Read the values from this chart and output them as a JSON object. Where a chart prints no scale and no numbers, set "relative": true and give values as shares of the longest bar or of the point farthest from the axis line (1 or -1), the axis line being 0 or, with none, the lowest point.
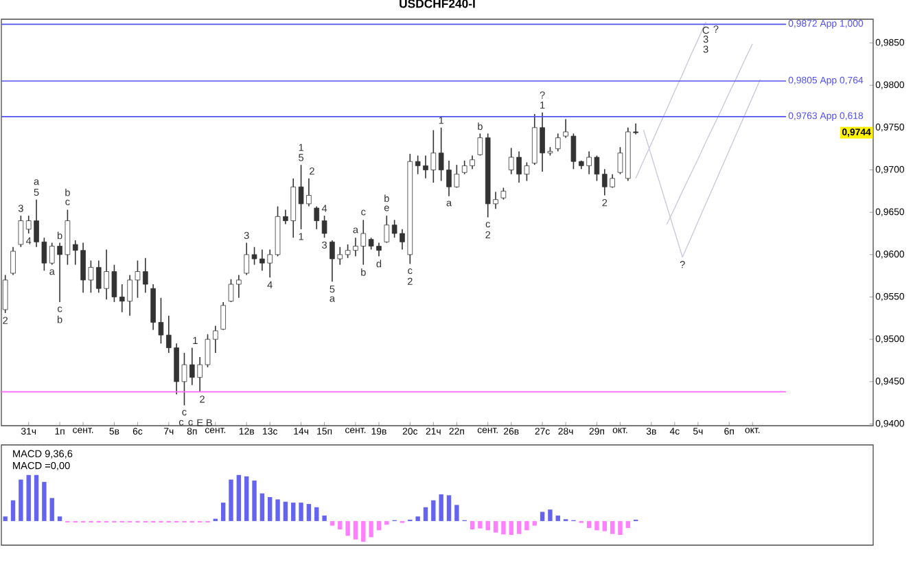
{
  "chart_data": [
    {
      "type": "candlestick",
      "title": "USDCHF240-I",
      "color": "#333333",
      "categories": [
        null,
        null,
        null,
        "31ч",
        null,
        null,
        null,
        "1п",
        null,
        null,
        "сент.",
        null,
        null,
        null,
        "5в",
        null,
        null,
        "6с",
        null,
        null,
        null,
        "7ч",
        null,
        null,
        "8п",
        null,
        null,
        "сент.",
        null,
        null,
        null,
        "12в",
        null,
        null,
        "13с",
        null,
        null,
        null,
        "14ч",
        null,
        null,
        "15п",
        null,
        null,
        null,
        "сент.",
        null,
        null,
        "19в",
        null,
        null,
        null,
        "20с",
        null,
        null,
        "21ч",
        null,
        null,
        "22п",
        null,
        null,
        null,
        "сент.",
        null,
        null,
        "26в",
        null,
        null,
        null,
        "27с",
        null,
        null,
        "28ч",
        null,
        null,
        null,
        "29п",
        null,
        null,
        "окт.",
        null,
        null,
        null,
        "3в",
        null,
        null,
        "4с",
        null,
        null,
        "5ч",
        null,
        null,
        null,
        "6п",
        null,
        null,
        "окт.",
        null,
        null,
        null,
        null,
        null,
        null,
        null,
        null,
        null,
        null,
        null,
        null,
        null,
        null,
        null
      ],
      "ohlc": [
        [
          0.9535,
          0.9576,
          0.9531,
          0.957
        ],
        [
          0.9578,
          0.9609,
          0.9576,
          0.9604
        ],
        [
          0.9612,
          0.9646,
          0.9609,
          0.964
        ],
        [
          0.963,
          0.9646,
          0.9625,
          0.964
        ],
        [
          0.964,
          0.9665,
          0.9609,
          0.9615
        ],
        [
          0.9615,
          0.962,
          0.9581,
          0.959
        ],
        [
          0.959,
          0.9614,
          0.9588,
          0.961
        ],
        [
          0.961,
          0.9614,
          0.9544,
          0.96
        ],
        [
          0.96,
          0.9653,
          0.9588,
          0.964
        ],
        [
          0.9612,
          0.9617,
          0.9588,
          0.9605
        ],
        [
          0.9605,
          0.9614,
          0.9555,
          0.957
        ],
        [
          0.957,
          0.9593,
          0.9555,
          0.9585
        ],
        [
          0.9585,
          0.9593,
          0.9555,
          0.956
        ],
        [
          0.956,
          0.9606,
          0.9547,
          0.958
        ],
        [
          0.958,
          0.9588,
          0.9544,
          0.955
        ],
        [
          0.955,
          0.9565,
          0.9532,
          0.9545
        ],
        [
          0.9545,
          0.9576,
          0.9528,
          0.957
        ],
        [
          0.957,
          0.9593,
          0.9549,
          0.958
        ],
        [
          0.958,
          0.9596,
          0.9555,
          0.9565
        ],
        [
          0.956,
          0.9565,
          0.9511,
          0.952
        ],
        [
          0.952,
          0.9549,
          0.9495,
          0.9505
        ],
        [
          0.9505,
          0.9528,
          0.9484,
          0.949
        ],
        [
          0.949,
          0.9495,
          0.9435,
          0.945
        ],
        [
          0.945,
          0.9484,
          0.9422,
          0.947
        ],
        [
          0.947,
          0.949,
          0.9446,
          0.9455
        ],
        [
          0.9455,
          0.9479,
          0.9438,
          0.947
        ],
        [
          0.947,
          0.9506,
          0.9467,
          0.95
        ],
        [
          0.95,
          0.9516,
          0.9484,
          0.951
        ],
        [
          0.9512,
          0.9544,
          0.9511,
          0.954
        ],
        [
          0.9545,
          0.9571,
          0.9544,
          0.9565
        ],
        [
          0.9565,
          0.9576,
          0.9549,
          0.957
        ],
        [
          0.9578,
          0.9614,
          0.9576,
          0.96
        ],
        [
          0.96,
          0.9609,
          0.9588,
          0.9595
        ],
        [
          0.9595,
          0.9606,
          0.9581,
          0.959
        ],
        [
          0.959,
          0.9606,
          0.9573,
          0.96
        ],
        [
          0.96,
          0.9657,
          0.9598,
          0.9645
        ],
        [
          0.9645,
          0.9653,
          0.9636,
          0.964
        ],
        [
          0.964,
          0.969,
          0.962,
          0.968
        ],
        [
          0.968,
          0.9706,
          0.963,
          0.966
        ],
        [
          0.966,
          0.969,
          0.9657,
          0.967
        ],
        [
          0.9655,
          0.9657,
          0.963,
          0.964
        ],
        [
          0.964,
          0.9646,
          0.962,
          0.9625
        ],
        [
          0.9615,
          0.9617,
          0.9568,
          0.9595
        ],
        [
          0.9595,
          0.9609,
          0.9588,
          0.96
        ],
        [
          0.96,
          0.9612,
          0.9596,
          0.9605
        ],
        [
          0.9605,
          0.962,
          0.9598,
          0.961
        ],
        [
          0.961,
          0.9641,
          0.9588,
          0.9625
        ],
        [
          0.9618,
          0.962,
          0.9606,
          0.961
        ],
        [
          0.961,
          0.9614,
          0.9598,
          0.9605
        ],
        [
          0.9615,
          0.9646,
          0.9614,
          0.9635
        ],
        [
          0.9635,
          0.9641,
          0.962,
          0.9625
        ],
        [
          0.9625,
          0.963,
          0.9606,
          0.9615
        ],
        [
          0.96,
          0.9719,
          0.9589,
          0.971
        ],
        [
          0.971,
          0.9717,
          0.9695,
          0.9705
        ],
        [
          0.9705,
          0.9717,
          0.969,
          0.97
        ],
        [
          0.97,
          0.9747,
          0.9685,
          0.972
        ],
        [
          0.972,
          0.975,
          0.9687,
          0.97
        ],
        [
          0.97,
          0.9711,
          0.9669,
          0.968
        ],
        [
          0.968,
          0.9706,
          0.9679,
          0.9695
        ],
        [
          0.9697,
          0.9711,
          0.9695,
          0.9705
        ],
        [
          0.9705,
          0.9717,
          0.9701,
          0.9712
        ],
        [
          0.9718,
          0.9743,
          0.9717,
          0.9738
        ],
        [
          0.9738,
          0.9743,
          0.9644,
          0.966
        ],
        [
          0.966,
          0.9674,
          0.9654,
          0.9665
        ],
        [
          0.9667,
          0.9679,
          0.9665,
          0.9675
        ],
        [
          0.97,
          0.9726,
          0.9695,
          0.9715
        ],
        [
          0.9715,
          0.9722,
          0.9685,
          0.9695
        ],
        [
          0.9695,
          0.9709,
          0.9687,
          0.9705
        ],
        [
          0.9708,
          0.9766,
          0.9706,
          0.975
        ],
        [
          0.975,
          0.9768,
          0.9698,
          0.972
        ],
        [
          0.972,
          0.9727,
          0.9717,
          0.9722
        ],
        [
          0.9725,
          0.9743,
          0.9722,
          0.9738
        ],
        [
          0.974,
          0.976,
          0.9738,
          0.9745
        ],
        [
          0.974,
          0.9743,
          0.9701,
          0.971
        ],
        [
          0.971,
          0.9711,
          0.9701,
          0.9705
        ],
        [
          0.9705,
          0.9722,
          0.9695,
          0.9715
        ],
        [
          0.9715,
          0.9717,
          0.9687,
          0.9695
        ],
        [
          0.9695,
          0.9701,
          0.967,
          0.968
        ],
        [
          0.968,
          0.9695,
          0.9679,
          0.969
        ],
        [
          0.9697,
          0.9727,
          0.9695,
          0.972
        ],
        [
          0.969,
          0.975,
          0.9687,
          0.9745
        ],
        [
          0.9745,
          0.9755,
          0.9742,
          0.9744
        ],
        null,
        null,
        null,
        null,
        null,
        null,
        null,
        null,
        null,
        null,
        null,
        null,
        null,
        null,
        null,
        null,
        null,
        null,
        null,
        null,
        null,
        null,
        null,
        null,
        null,
        null,
        null,
        null,
        null,
        null
      ],
      "series": [
        {
          "type": "line",
          "color": "#c8c8dc",
          "values": [
            null,
            null,
            null,
            null,
            null,
            null,
            null,
            null,
            null,
            null,
            null,
            null,
            null,
            null,
            null,
            null,
            null,
            null,
            null,
            null,
            null,
            null,
            null,
            null,
            null,
            null,
            null,
            null,
            null,
            null,
            null,
            null,
            null,
            null,
            null,
            null,
            null,
            null,
            null,
            null,
            null,
            null,
            null,
            null,
            null,
            null,
            null,
            null,
            null,
            null,
            null,
            null,
            null,
            null,
            null,
            null,
            null,
            null,
            null,
            null,
            null,
            null,
            null,
            null,
            null,
            null,
            null,
            null,
            null,
            null,
            null,
            null,
            null,
            null,
            null,
            null,
            null,
            null,
            null,
            null,
            null,
            0.969,
            0.9711,
            0.9731,
            0.9752,
            0.9772,
            0.9793,
            0.9813,
            0.9834,
            0.9854,
            0.9875,
            null,
            null,
            null,
            null,
            null,
            null,
            null,
            null,
            null,
            null,
            null,
            null,
            null,
            null,
            null,
            null,
            null,
            null,
            null,
            null,
            null
          ]
        },
        {
          "type": "line",
          "color": "#c8c8dc",
          "values": [
            null,
            null,
            null,
            null,
            null,
            null,
            null,
            null,
            null,
            null,
            null,
            null,
            null,
            null,
            null,
            null,
            null,
            null,
            null,
            null,
            null,
            null,
            null,
            null,
            null,
            null,
            null,
            null,
            null,
            null,
            null,
            null,
            null,
            null,
            null,
            null,
            null,
            null,
            null,
            null,
            null,
            null,
            null,
            null,
            null,
            null,
            null,
            null,
            null,
            null,
            null,
            null,
            null,
            null,
            null,
            null,
            null,
            null,
            null,
            null,
            null,
            null,
            null,
            null,
            null,
            null,
            null,
            null,
            null,
            null,
            null,
            null,
            null,
            null,
            null,
            null,
            null,
            null,
            null,
            null,
            null,
            null,
            0.9747,
            0.9717,
            0.9687,
            0.9657,
            0.9627,
            0.9597,
            0.9618,
            0.9639,
            0.966,
            0.9681,
            0.9702,
            0.9723,
            0.9744,
            0.9765,
            0.9786,
            0.9807,
            null,
            null,
            null,
            null,
            null,
            null,
            null,
            null,
            null,
            null,
            null,
            null,
            null,
            null
          ]
        },
        {
          "type": "line",
          "color": "#c8c8dc",
          "values": [
            null,
            null,
            null,
            null,
            null,
            null,
            null,
            null,
            null,
            null,
            null,
            null,
            null,
            null,
            null,
            null,
            null,
            null,
            null,
            null,
            null,
            null,
            null,
            null,
            null,
            null,
            null,
            null,
            null,
            null,
            null,
            null,
            null,
            null,
            null,
            null,
            null,
            null,
            null,
            null,
            null,
            null,
            null,
            null,
            null,
            null,
            null,
            null,
            null,
            null,
            null,
            null,
            null,
            null,
            null,
            null,
            null,
            null,
            null,
            null,
            null,
            null,
            null,
            null,
            null,
            null,
            null,
            null,
            null,
            null,
            null,
            null,
            null,
            null,
            null,
            null,
            null,
            null,
            null,
            null,
            null,
            null,
            null,
            null,
            null,
            0.9636,
            0.9655,
            0.9675,
            0.9694,
            0.9713,
            0.9733,
            0.9752,
            0.9771,
            0.9791,
            0.981,
            0.983,
            0.9849,
            null,
            null,
            null,
            null,
            null,
            null,
            null,
            null,
            null,
            null,
            null,
            null,
            null,
            null,
            null
          ]
        }
      ],
      "ylim": [
        0.9398,
        0.9878
      ],
      "yticks": [
        {
          "value": 0.94,
          "label": "0,9400"
        },
        {
          "value": 0.945,
          "label": "0,9450"
        },
        {
          "value": 0.95,
          "label": "0,9500"
        },
        {
          "value": 0.955,
          "label": "0,9550"
        },
        {
          "value": 0.96,
          "label": "0,9600"
        },
        {
          "value": 0.965,
          "label": "0,9650"
        },
        {
          "value": 0.97,
          "label": "0,9700"
        },
        {
          "value": 0.975,
          "label": "0,9750"
        },
        {
          "value": 0.98,
          "label": "0,9800"
        },
        {
          "value": 0.985,
          "label": "0,9850"
        }
      ],
      "ref_lines": [
        {
          "axis": "y",
          "value": 0.9872,
          "label": "0,9872 App 1,000",
          "color": "#5050f0"
        },
        {
          "axis": "y",
          "value": 0.9805,
          "label": "0,9805 App 0,764",
          "color": "#5050f0"
        },
        {
          "axis": "y",
          "value": 0.9763,
          "label": "0,9763 App 0,618",
          "color": "#5050f0"
        },
        {
          "axis": "y",
          "value": 0.9438,
          "color": "#ff66ff"
        }
      ],
      "annotations": [
        {
          "text": "0,9744",
          "y": 0.9744
        },
        "2",
        "3",
        "4",
        "5",
        "a",
        "a",
        "b",
        "c",
        "b",
        "c",
        "b",
        "1",
        "2",
        "c",
        "c",
        "c",
        "E",
        "B",
        "3",
        "4",
        "1",
        "5",
        "2",
        "1",
        "3",
        "4",
        "5",
        "a",
        "a",
        "b",
        "c",
        "d",
        "b",
        "e",
        "c",
        "2",
        "1",
        "a",
        "b",
        "c",
        "2",
        "?",
        "1",
        "2",
        {
          "text": "C",
          "y": 0.9865
        },
        "?",
        "3",
        "3",
        "?"
      ]
    },
    {
      "type": "bar",
      "relative": true,
      "title": "MACD 9,36,6",
      "subtitle": "MACD =0,00",
      "categories": [
        null,
        null,
        null,
        null,
        null,
        null,
        null,
        null,
        null,
        null,
        null,
        null,
        null,
        null,
        null,
        null,
        null,
        null,
        null,
        null,
        null,
        null,
        null,
        null,
        null,
        null,
        null,
        null,
        null,
        null,
        null,
        null,
        null,
        null,
        null,
        null,
        null,
        null,
        null,
        null,
        null,
        null,
        null,
        null,
        null,
        null,
        null,
        null,
        null,
        null,
        null,
        null,
        null,
        null,
        null,
        null,
        null,
        null,
        null,
        null,
        null,
        null,
        null,
        null,
        null,
        null,
        null,
        null,
        null,
        null,
        null,
        null,
        null,
        null,
        null,
        null,
        null,
        null,
        null,
        null,
        null,
        null,
        null,
        null,
        null,
        null,
        null,
        null,
        null,
        null,
        null,
        null,
        null,
        null,
        null,
        null,
        null,
        null,
        null,
        null,
        null,
        null,
        null,
        null,
        null,
        null,
        null,
        null,
        null,
        null,
        null,
        null
      ],
      "values": [
        0.1,
        0.45,
        0.9,
        1,
        1,
        0.85,
        0.5,
        0.1,
        -0.03,
        -0.03,
        -0.03,
        -0.03,
        -0.03,
        -0.03,
        -0.03,
        -0.03,
        -0.03,
        -0.03,
        -0.03,
        -0.03,
        -0.03,
        -0.03,
        -0.03,
        -0.03,
        -0.03,
        -0.03,
        -0.03,
        0.05,
        0.4,
        0.9,
        1,
        0.97,
        0.88,
        0.6,
        0.52,
        0.47,
        0.42,
        0.4,
        0.4,
        0.37,
        0.3,
        0.12,
        -0.1,
        -0.18,
        -0.32,
        -0.4,
        -0.45,
        -0.35,
        -0.2,
        -0.08,
        0.02,
        -0.04,
        0.03,
        0.1,
        0.3,
        0.45,
        0.58,
        0.56,
        0.35,
        0.02,
        -0.18,
        -0.16,
        -0.2,
        -0.25,
        -0.29,
        -0.3,
        -0.28,
        -0.2,
        -0.1,
        0.2,
        0.25,
        0.12,
        0.04,
        0.02,
        -0.04,
        -0.15,
        -0.2,
        -0.22,
        -0.28,
        -0.3,
        -0.15,
        0.03,
        null,
        null,
        null,
        null,
        null,
        null,
        null,
        null,
        null,
        null,
        null,
        null,
        null,
        null,
        null,
        null,
        null,
        null,
        null,
        null,
        null,
        null,
        null,
        null,
        null,
        null,
        null,
        null,
        null,
        null
      ],
      "colors": [
        "#6464f0",
        "#6464f0",
        "#6464f0",
        "#6464f0",
        "#6464f0",
        "#6464f0",
        "#6464f0",
        "#6464f0",
        "#ff80ff",
        "#ff80ff",
        "#ff80ff",
        "#ff80ff",
        "#ff80ff",
        "#ff80ff",
        "#ff80ff",
        "#ff80ff",
        "#ff80ff",
        "#ff80ff",
        "#ff80ff",
        "#ff80ff",
        "#ff80ff",
        "#ff80ff",
        "#ff80ff",
        "#ff80ff",
        "#ff80ff",
        "#ff80ff",
        "#ff80ff",
        "#6464f0",
        "#6464f0",
        "#6464f0",
        "#6464f0",
        "#6464f0",
        "#6464f0",
        "#6464f0",
        "#6464f0",
        "#6464f0",
        "#6464f0",
        "#6464f0",
        "#6464f0",
        "#6464f0",
        "#6464f0",
        "#6464f0",
        "#ff80ff",
        "#ff80ff",
        "#ff80ff",
        "#ff80ff",
        "#ff80ff",
        "#ff80ff",
        "#ff80ff",
        "#ff80ff",
        "#6464f0",
        "#ff80ff",
        "#6464f0",
        "#6464f0",
        "#6464f0",
        "#6464f0",
        "#6464f0",
        "#6464f0",
        "#6464f0",
        "#6464f0",
        "#ff80ff",
        "#ff80ff",
        "#ff80ff",
        "#ff80ff",
        "#ff80ff",
        "#ff80ff",
        "#ff80ff",
        "#ff80ff",
        "#ff80ff",
        "#6464f0",
        "#6464f0",
        "#6464f0",
        "#6464f0",
        "#6464f0",
        "#ff80ff",
        "#ff80ff",
        "#ff80ff",
        "#ff80ff",
        "#ff80ff",
        "#ff80ff",
        "#ff80ff",
        "#6464f0",
        null,
        null,
        null,
        null,
        null,
        null,
        null,
        null,
        null,
        null,
        null,
        null,
        null,
        null,
        null,
        null,
        null,
        null,
        null,
        null,
        null,
        null,
        null,
        null,
        null,
        null,
        null,
        null,
        null,
        null
      ]
    }
  ]
}
